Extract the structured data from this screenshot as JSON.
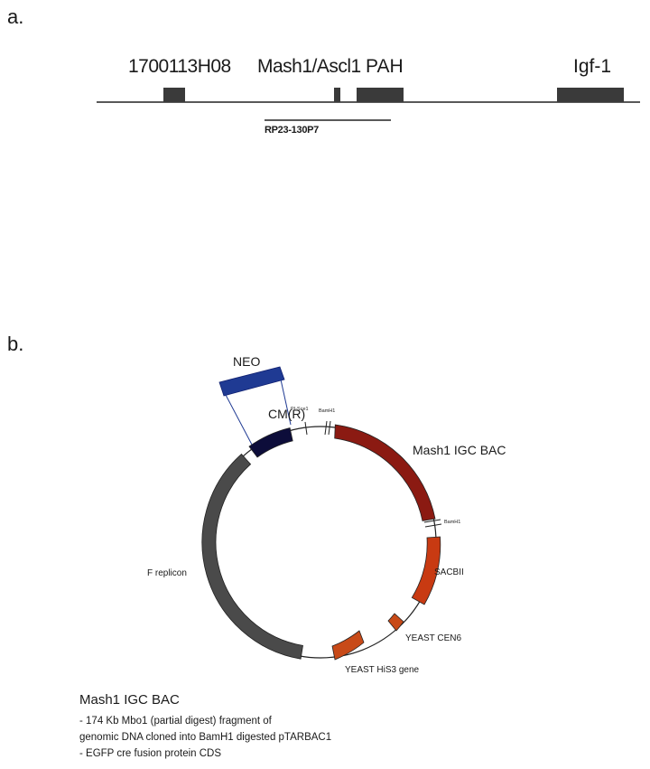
{
  "panel_a": {
    "label": "a.",
    "genes": [
      "1700113H08",
      "Mash1/Ascl1",
      "PAH",
      "Igf-1"
    ],
    "bac_clone": "RP23-130P7"
  },
  "panel_b": {
    "label": "b.",
    "neo": "NEO",
    "cmr": "CM(R)",
    "pi_sce1": "PI-Sce1",
    "bamh1_top": "BamH1",
    "bamh1_right": "BamH1",
    "mash1_igc_bac": "Mash1 IGC BAC",
    "sacbii": "SACBII",
    "yeast_cen6": "YEAST CEN6",
    "yeast_his3": "YEAST HiS3 gene",
    "f_replicon": "F replicon"
  },
  "notes": {
    "title": "Mash1 IGC BAC",
    "lines": [
      "- 174 Kb Mbo1 (partial digest) fragment of",
      "genomic DNA cloned into BamH1 digested pTARBAC1",
      "- EGFP cre fusion protein CDS"
    ]
  },
  "colors": {
    "gene_box": "#3a3a3a",
    "neo": "#1f3a93",
    "cmr": "#0d0d3a",
    "mash1_insert": "#8b1a12",
    "sacbii": "#c83a12",
    "yeast_cen6": "#c84a18",
    "yeast_his3": "#c84a18",
    "f_replicon": "#4a4a4a"
  }
}
